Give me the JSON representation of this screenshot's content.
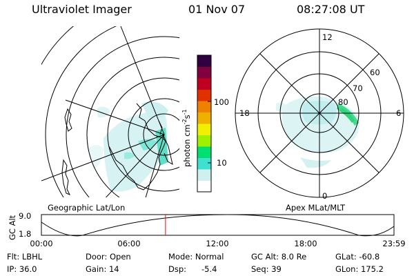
{
  "header": {
    "instrument": "Ultraviolet Imager",
    "date": "01 Nov 07",
    "time": "08:27:08 UT"
  },
  "colorbar": {
    "unit_main": "photon cm",
    "unit_sup1": "-2",
    "unit_mid": "s",
    "unit_sup2": "-1",
    "ticks": [
      {
        "label": "100",
        "value": 100
      },
      {
        "label": "10",
        "value": 10
      }
    ],
    "colors": [
      "#ffffff",
      "#d0f0f0",
      "#40e0d0",
      "#00e070",
      "#a0f000",
      "#f0f000",
      "#f0b000",
      "#f08000",
      "#e03000",
      "#c00020",
      "#800040",
      "#300040"
    ]
  },
  "left_map": {
    "label": "Geographic Lat/Lon"
  },
  "right_map": {
    "label": "Apex MLat/MLT",
    "mlt_labels": {
      "top": "12",
      "left": "18",
      "right": "6",
      "bottom": "0"
    },
    "lat_labels": [
      "60",
      "70",
      "80"
    ]
  },
  "timeline": {
    "ylabel": "GC Alt",
    "y_top": "9.0",
    "y_bottom": "1.8",
    "ticks": [
      "00:00",
      "06:00",
      "12:00",
      "18:00",
      "23:59"
    ],
    "current_fraction": 0.352,
    "marker_color": "#ff0000"
  },
  "status": {
    "filter": "Flt: LBHL",
    "door": "Door: Open",
    "mode": "Mode: Normal",
    "gc_alt": "GC Alt: 8.0 Re",
    "glat": "GLat: -60.8",
    "ip": "IP: 36.0",
    "gain": "Gain: 14",
    "dsp_label": "Dsp:",
    "dsp_value": "-5.4",
    "seq": "Seq: 39",
    "glon": "GLon: 175.2"
  }
}
